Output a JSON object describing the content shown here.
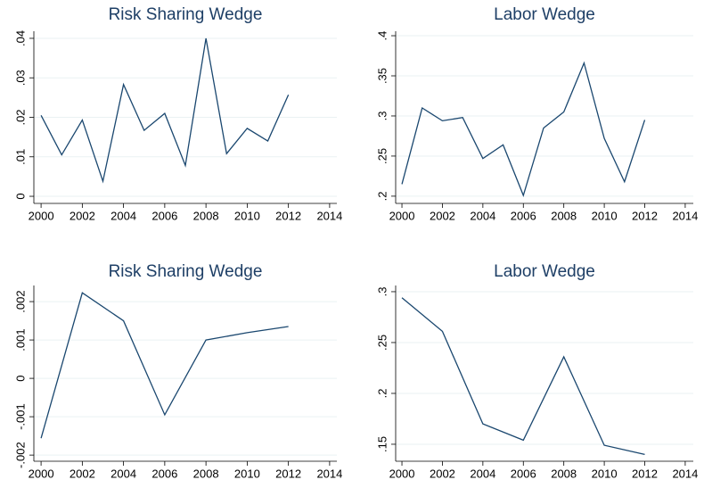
{
  "chart_data": [
    {
      "type": "line",
      "title": "Risk Sharing Wedge",
      "color": "#1a476f",
      "grid": true,
      "x": [
        2000,
        2001,
        2002,
        2003,
        2004,
        2005,
        2006,
        2007,
        2008,
        2009,
        2010,
        2011,
        2012
      ],
      "values": [
        0.0205,
        0.0105,
        0.0193,
        0.0038,
        0.0283,
        0.0167,
        0.021,
        0.0078,
        0.04,
        0.0108,
        0.0172,
        0.014,
        0.0257
      ],
      "xlim": [
        1999.65,
        2014.35
      ],
      "xticks": [
        2000,
        2002,
        2004,
        2006,
        2008,
        2010,
        2012,
        2014
      ],
      "ylim": [
        -0.0018,
        0.0418
      ],
      "yticks": [
        0,
        {
          "value": 0.01,
          "label": ".01"
        },
        {
          "value": 0.02,
          "label": ".02"
        },
        {
          "value": 0.03,
          "label": ".03"
        },
        {
          "value": 0.04,
          "label": ".04"
        }
      ]
    },
    {
      "type": "line",
      "title": "Labor Wedge",
      "color": "#1a476f",
      "grid": true,
      "x": [
        2000,
        2001,
        2002,
        2003,
        2004,
        2005,
        2006,
        2007,
        2008,
        2009,
        2010,
        2011,
        2012
      ],
      "values": [
        0.215,
        0.31,
        0.294,
        0.298,
        0.247,
        0.264,
        0.201,
        0.285,
        0.305,
        0.366,
        0.272,
        0.218,
        0.295
      ],
      "xlim": [
        1999.69,
        2014.4
      ],
      "xticks": [
        2000,
        2002,
        2004,
        2006,
        2008,
        2010,
        2012,
        2014
      ],
      "ylim": [
        0.191,
        0.4056
      ],
      "yticks": [
        {
          "value": 0.2,
          "label": ".2"
        },
        {
          "value": 0.25,
          "label": ".25"
        },
        {
          "value": 0.3,
          "label": ".3"
        },
        {
          "value": 0.35,
          "label": ".35"
        },
        {
          "value": 0.4,
          "label": ".4"
        }
      ]
    },
    {
      "type": "line",
      "title": "Risk Sharing Wedge",
      "color": "#1a476f",
      "grid": true,
      "x": [
        2000,
        2002,
        2004,
        2006,
        2008,
        2010,
        2012
      ],
      "values": [
        -0.00156,
        0.00223,
        0.0015,
        -0.00095,
        0.001,
        0.00119,
        0.00135
      ],
      "xlim": [
        1999.65,
        2014.35
      ],
      "xticks": [
        2000,
        2002,
        2004,
        2006,
        2008,
        2010,
        2012,
        2014
      ],
      "ylim": [
        -0.00216,
        0.00242
      ],
      "yticks": [
        {
          "value": -0.002,
          "label": "-.002"
        },
        {
          "value": -0.001,
          "label": "-.001"
        },
        0,
        {
          "value": 0.001,
          "label": ".001"
        },
        {
          "value": 0.002,
          "label": ".002"
        }
      ]
    },
    {
      "type": "line",
      "title": "Labor Wedge",
      "color": "#1a476f",
      "grid": true,
      "x": [
        2000,
        2002,
        2004,
        2006,
        2008,
        2010,
        2012
      ],
      "values": [
        0.294,
        0.261,
        0.17,
        0.154,
        0.236,
        0.149,
        0.14
      ],
      "xlim": [
        1999.69,
        2014.4
      ],
      "xticks": [
        2000,
        2002,
        2004,
        2006,
        2008,
        2010,
        2012,
        2014
      ],
      "ylim": [
        0.1333,
        0.3061
      ],
      "yticks": [
        {
          "value": 0.15,
          "label": ".15"
        },
        {
          "value": 0.2,
          "label": ".2"
        },
        {
          "value": 0.25,
          "label": ".25"
        },
        {
          "value": 0.3,
          "label": ".3"
        }
      ]
    }
  ]
}
